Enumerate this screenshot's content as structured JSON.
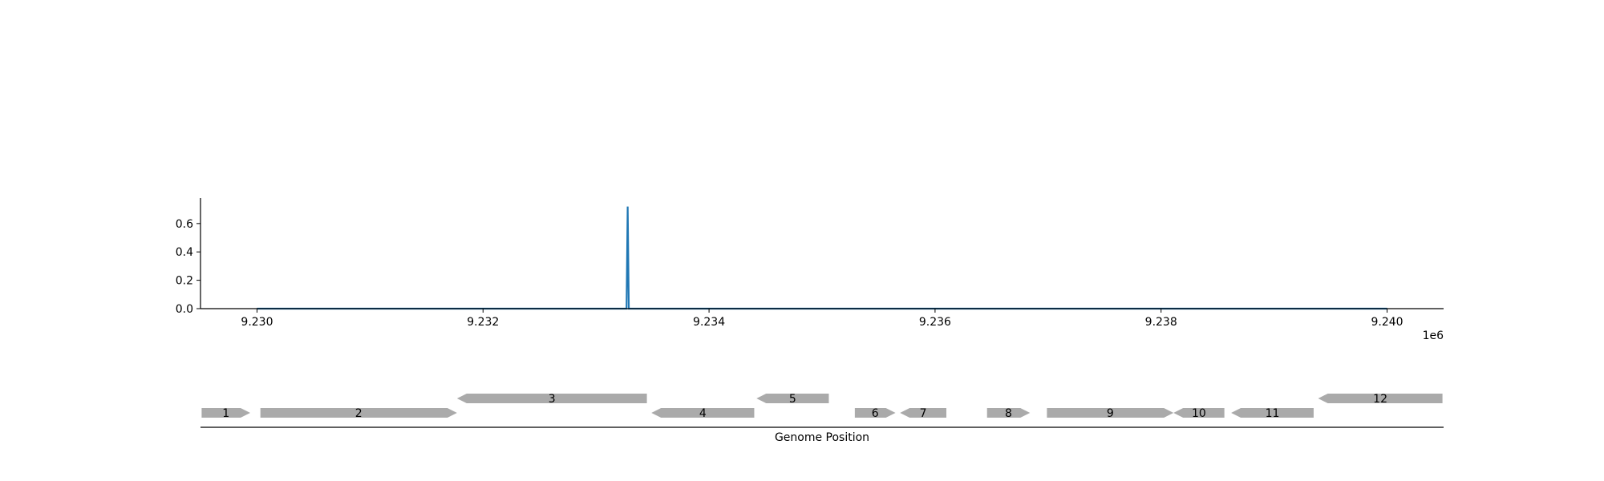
{
  "chart_data": [
    {
      "type": "line",
      "title": "",
      "xlabel": "",
      "ylabel": "",
      "x_offset_label": "1e6",
      "xlim": [
        9229500,
        9240500
      ],
      "ylim": [
        0,
        0.78
      ],
      "x_ticks": [
        9230000,
        9232000,
        9234000,
        9236000,
        9238000,
        9240000
      ],
      "x_tick_labels": [
        "9.230",
        "9.232",
        "9.234",
        "9.236",
        "9.238",
        "9.240"
      ],
      "y_ticks": [
        0.0,
        0.2,
        0.4,
        0.6
      ],
      "y_tick_labels": [
        "0.0",
        "0.2",
        "0.4",
        "0.6"
      ],
      "grid": false,
      "series": [
        {
          "color": "#1f77b4",
          "x": [
            9230000,
            9233270,
            9233280,
            9233290,
            9240000
          ],
          "y": [
            0,
            0,
            0.72,
            0,
            0
          ]
        }
      ]
    },
    {
      "type": "gene-track",
      "xlabel": "Genome Position",
      "xlim": [
        9229500,
        9240500
      ],
      "gene_color": "#aaaaaa",
      "genes": [
        {
          "label": "1",
          "start": 9229510,
          "end": 9229940,
          "strand": 1,
          "row": 0
        },
        {
          "label": "2",
          "start": 9230030,
          "end": 9231770,
          "strand": 1,
          "row": 0
        },
        {
          "label": "3",
          "start": 9231770,
          "end": 9233450,
          "strand": -1,
          "row": 1
        },
        {
          "label": "4",
          "start": 9233490,
          "end": 9234400,
          "strand": -1,
          "row": 0
        },
        {
          "label": "5",
          "start": 9234420,
          "end": 9235060,
          "strand": -1,
          "row": 1
        },
        {
          "label": "6",
          "start": 9235290,
          "end": 9235650,
          "strand": 1,
          "row": 0
        },
        {
          "label": "7",
          "start": 9235690,
          "end": 9236100,
          "strand": -1,
          "row": 0
        },
        {
          "label": "8",
          "start": 9236460,
          "end": 9236840,
          "strand": 1,
          "row": 0
        },
        {
          "label": "9",
          "start": 9236990,
          "end": 9238110,
          "strand": 1,
          "row": 0
        },
        {
          "label": "10",
          "start": 9238110,
          "end": 9238560,
          "strand": -1,
          "row": 0
        },
        {
          "label": "11",
          "start": 9238620,
          "end": 9239350,
          "strand": -1,
          "row": 0
        },
        {
          "label": "12",
          "start": 9239390,
          "end": 9240490,
          "strand": -1,
          "row": 1
        }
      ]
    }
  ]
}
